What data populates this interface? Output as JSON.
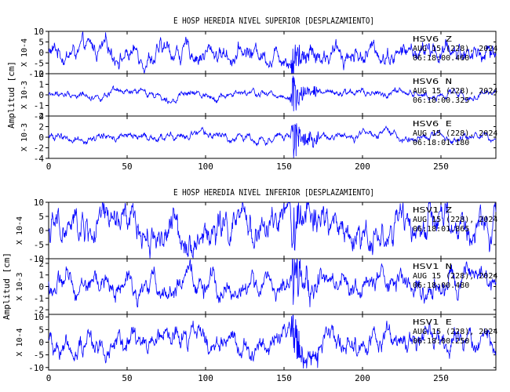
{
  "chart_data": [
    {
      "type": "line",
      "title": "E HOSP HEREDIA NIVEL SUPERIOR [DESPLAZAMIENTO]",
      "ylabel": "Amplitud [cm]",
      "xlim": [
        0,
        285
      ],
      "x_ticks": [
        0,
        50,
        100,
        150,
        200,
        250
      ],
      "line_color": "#0000ff",
      "traces": [
        {
          "scale_label": "X 10-4",
          "ylim": [
            -10,
            10
          ],
          "y_ticks": [
            10,
            5,
            0,
            -5,
            -10
          ],
          "station": "HSV6",
          "component": "Z",
          "date": "AUG 15 (228), 2024",
          "time": "06:18:00.460",
          "noise_level": 4.5,
          "event_level": 8
        },
        {
          "scale_label": "X 10-3",
          "ylim": [
            -2,
            2
          ],
          "y_ticks": [
            2,
            1,
            0,
            -1,
            -2
          ],
          "station": "HSV6",
          "component": "N",
          "date": "AUG 15 (228), 2024",
          "time": "06:18:00.325",
          "noise_level": 0.35,
          "event_level": 1.9
        },
        {
          "scale_label": "X 10-3",
          "ylim": [
            -4,
            4
          ],
          "y_ticks": [
            4,
            2,
            0,
            -2,
            -4
          ],
          "station": "HSV6",
          "component": "E",
          "date": "AUG 15 (228), 2024",
          "time": "06:18:01.180",
          "noise_level": 0.8,
          "event_level": 3.8
        }
      ]
    },
    {
      "type": "line",
      "title": "E HOSP HEREDIA NIVEL INFERIOR [DESPLAZAMIENTO]",
      "ylabel": "Amplitud [cm]",
      "xlim": [
        0,
        285
      ],
      "x_ticks": [
        0,
        50,
        100,
        150,
        200,
        250
      ],
      "line_color": "#0000ff",
      "traces": [
        {
          "scale_label": "X 10-4",
          "ylim": [
            -10,
            10
          ],
          "y_ticks": [
            10,
            5,
            0,
            -5,
            -10
          ],
          "station": "HSV1",
          "component": "Z",
          "date": "AUG 15 (228), 2024",
          "time": "06:18:01.865",
          "noise_level": 6,
          "event_level": 9
        },
        {
          "scale_label": "X 10-3",
          "ylim": [
            -2.4,
            2.4
          ],
          "y_ticks": [
            2,
            1,
            0,
            -1,
            -2
          ],
          "station": "HSV1",
          "component": "N",
          "date": "AUG 15 (228), 2024",
          "time": "06:18:00.480",
          "noise_level": 1.0,
          "event_level": 2.2
        },
        {
          "scale_label": "X 10-4",
          "ylim": [
            -11,
            11
          ],
          "y_ticks": [
            10,
            5,
            0,
            -5,
            -10
          ],
          "station": "HSV1",
          "component": "E",
          "date": "AUG 15 (228), 2024",
          "time": "06:18:00.250",
          "noise_level": 4.5,
          "event_level": 9.5
        }
      ]
    }
  ]
}
